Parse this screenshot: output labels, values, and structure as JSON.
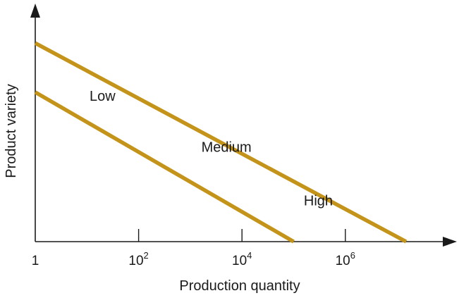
{
  "chart_data": {
    "type": "line",
    "title": "",
    "xlabel": "Production quantity",
    "ylabel": "Product variety",
    "xscale": "log",
    "xlim": [
      1,
      100000000
    ],
    "ylim": [
      0,
      1
    ],
    "grid": false,
    "x_ticks": [
      {
        "value": 1,
        "base": "1",
        "exp": ""
      },
      {
        "value": 100,
        "base": "10",
        "exp": "2"
      },
      {
        "value": 10000,
        "base": "10",
        "exp": "4"
      },
      {
        "value": 1000000,
        "base": "10",
        "exp": "6"
      }
    ],
    "line_color": "#c4941a",
    "series": [
      {
        "points": [
          [
            1,
            0.7
          ],
          [
            100000,
            0.0
          ]
        ]
      },
      {
        "points": [
          [
            1,
            0.93
          ],
          [
            15000000,
            0.0
          ]
        ]
      }
    ],
    "annotations": [
      {
        "text": "Low",
        "x": 20,
        "y": 0.66
      },
      {
        "text": "Medium",
        "x": 5000,
        "y": 0.42
      },
      {
        "text": "High",
        "x": 300000,
        "y": 0.17
      }
    ]
  }
}
